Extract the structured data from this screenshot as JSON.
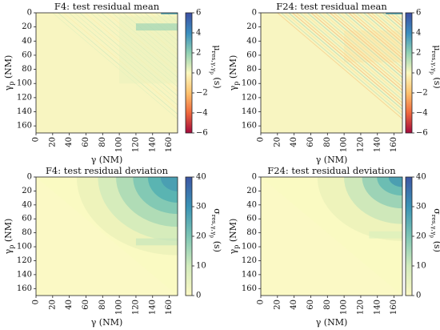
{
  "chart_data": [
    {
      "type": "heatmap",
      "title": "F4: test residual mean",
      "xlabel": "γ (NM)",
      "ylabel_main": "γ",
      "ylabel_sub": "p",
      "ylabel_unit": " (NM)",
      "x_ticks": [
        "0",
        "20",
        "40",
        "60",
        "80",
        "100",
        "120",
        "140",
        "160"
      ],
      "y_ticks": [
        "0",
        "20",
        "40",
        "60",
        "80",
        "100",
        "120",
        "140",
        "160"
      ],
      "xlim": [
        0,
        170
      ],
      "ylim": [
        0,
        170
      ],
      "colorbar": {
        "label_main": "μ",
        "label_sub": "res,γ,γ",
        "label_sub2": "p",
        "label_unit": "(s)",
        "ticks": [
          "6",
          "4",
          "2",
          "0",
          "−2",
          "−4",
          "−6"
        ],
        "range": [
          -6,
          6
        ],
        "colormap": "diverging red-yellow-blue"
      },
      "pattern": "mean-f4"
    },
    {
      "type": "heatmap",
      "title": "F24: test residual mean",
      "xlabel": "γ (NM)",
      "ylabel_main": "γ",
      "ylabel_sub": "p",
      "ylabel_unit": " (NM)",
      "x_ticks": [
        "0",
        "20",
        "40",
        "60",
        "80",
        "100",
        "120",
        "140",
        "160"
      ],
      "y_ticks": [
        "0",
        "20",
        "40",
        "60",
        "80",
        "100",
        "120",
        "140",
        "160"
      ],
      "xlim": [
        0,
        170
      ],
      "ylim": [
        0,
        170
      ],
      "colorbar": {
        "label_main": "μ",
        "label_sub": "res,γ,γ",
        "label_sub2": "p",
        "label_unit": "(s)",
        "ticks": [
          "6",
          "4",
          "2",
          "0",
          "−2",
          "−4",
          "−6"
        ],
        "range": [
          -6,
          6
        ],
        "colormap": "diverging red-yellow-blue"
      },
      "pattern": "mean-f24"
    },
    {
      "type": "heatmap",
      "title": "F4: test residual deviation",
      "xlabel": "γ (NM)",
      "ylabel_main": "γ",
      "ylabel_sub": "p",
      "ylabel_unit": " (NM)",
      "x_ticks": [
        "0",
        "20",
        "40",
        "60",
        "80",
        "100",
        "120",
        "140",
        "160"
      ],
      "y_ticks": [
        "0",
        "20",
        "40",
        "60",
        "80",
        "100",
        "120",
        "140",
        "160"
      ],
      "xlim": [
        0,
        170
      ],
      "ylim": [
        0,
        170
      ],
      "colorbar": {
        "label_main": "σ",
        "label_sub": "res,γ,γ",
        "label_sub2": "p",
        "label_unit": "(s)",
        "ticks": [
          "40",
          "30",
          "20",
          "10",
          "0"
        ],
        "range": [
          0,
          40
        ],
        "colormap": "yellow-green-blue"
      },
      "pattern": "std-f4"
    },
    {
      "type": "heatmap",
      "title": "F24: test residual deviation",
      "xlabel": "γ (NM)",
      "ylabel_main": "γ",
      "ylabel_sub": "p",
      "ylabel_unit": " (NM)",
      "x_ticks": [
        "0",
        "20",
        "40",
        "60",
        "80",
        "100",
        "120",
        "140",
        "160"
      ],
      "y_ticks": [
        "0",
        "20",
        "40",
        "60",
        "80",
        "100",
        "120",
        "140",
        "160"
      ],
      "xlim": [
        0,
        170
      ],
      "ylim": [
        0,
        170
      ],
      "colorbar": {
        "label_main": "σ",
        "label_sub": "res,γ,γ",
        "label_sub2": "p",
        "label_unit": "(s)",
        "ticks": [
          "40",
          "30",
          "20",
          "10",
          "0"
        ],
        "range": [
          0,
          40
        ],
        "colormap": "yellow-green-blue"
      },
      "pattern": "std-f24"
    }
  ]
}
